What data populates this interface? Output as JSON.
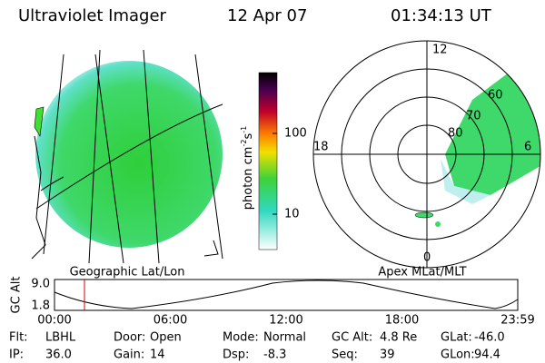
{
  "header": {
    "title": "Ultraviolet Imager",
    "date": "12 Apr 07",
    "time": "01:34:13 UT"
  },
  "left_panel": {
    "label": "Geographic Lat/Lon"
  },
  "colorbar": {
    "unit": [
      "photon cm",
      "-2",
      "s",
      "-1"
    ],
    "ticks": [
      "100",
      "10"
    ]
  },
  "polar_panel": {
    "label": "Apex MLat/MLT",
    "lat_labels": [
      "60",
      "70",
      "80"
    ],
    "mlt_labels": {
      "top": "12",
      "left": "18",
      "right": "6",
      "bottom": "0"
    }
  },
  "altitude_plot": {
    "y_label": "GC Alt",
    "y_ticks": [
      "9.0",
      "1.8"
    ],
    "x_ticks": [
      "00:00",
      "06:00",
      "12:00",
      "18:00",
      "23:59"
    ]
  },
  "info": [
    [
      {
        "label": "Flt:",
        "value": "LBHL"
      },
      {
        "label": "Door:",
        "value": "Open"
      },
      {
        "label": "Mode:",
        "value": "Normal"
      },
      {
        "label": "GC Alt:",
        "value": "4.8 Re"
      },
      {
        "label": "GLat:",
        "value": "-46.0"
      }
    ],
    [
      {
        "label": "IP:",
        "value": "36.0"
      },
      {
        "label": "Gain:",
        "value": "14"
      },
      {
        "label": "Dsp:",
        "value": "-8.3"
      },
      {
        "label": "Seq:",
        "value": "39"
      },
      {
        "label": "GLon:",
        "value": "94.4"
      }
    ]
  ]
}
